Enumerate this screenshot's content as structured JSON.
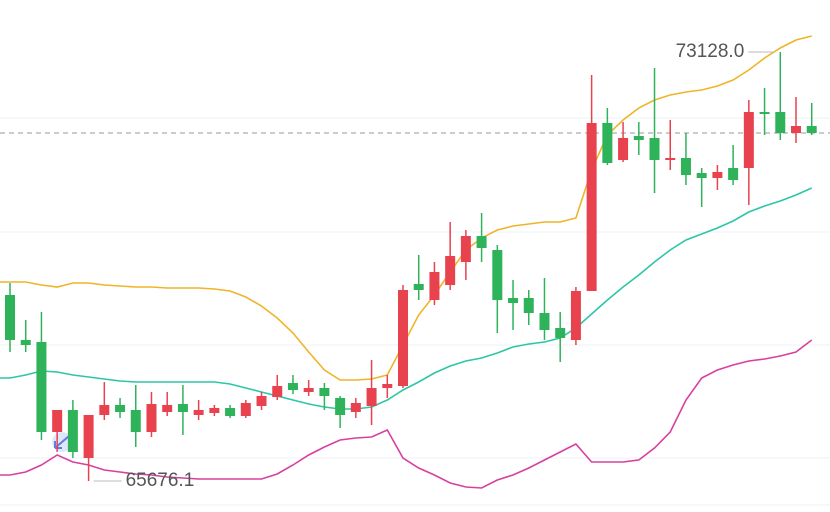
{
  "chart_data": {
    "type": "candlestick",
    "up_color": "#e8424f",
    "down_color": "#2eb35a",
    "open": [
      68907.1,
      68125.4,
      68090.7,
      66527.4,
      66909.5,
      66075.8,
      66822.7,
      66996.4,
      66909.5,
      66527.4,
      66874.8,
      67013.8,
      66822.7,
      66857.4,
      66944.3,
      66805.3,
      66979,
      67135.3,
      67378.5,
      67222.2,
      67291.7,
      67118,
      66874.8,
      66979,
      67291.7,
      67326.4,
      69098.2,
      68820.2,
      69080.8,
      69480.3,
      69931.9,
      69688.7,
      68855,
      68855,
      68594.4,
      68333.9,
      68125.4,
      68976.6,
      71894.7,
      71252,
      71668.9,
      71634.2,
      71252,
      71286.8,
      71026.2,
      70939.4,
      71113.1,
      71113.1,
      72085.8,
      72085.8,
      71721,
      71842.6
    ],
    "high": [
      69115.5,
      68472.8,
      68611.8,
      66909.5,
      67083.2,
      66822.7,
      67395.9,
      67118,
      67343.8,
      67222.2,
      67222.2,
      67343.8,
      67083.2,
      66996.4,
      66996.4,
      67083.2,
      67222.2,
      67517.5,
      67517.5,
      67430.6,
      67378.5,
      67152.7,
      67118,
      67778,
      67517.5,
      69080.8,
      69601.9,
      69480.3,
      70175.1,
      70036.1,
      70331.4,
      69775.6,
      69167.6,
      68993.9,
      69202.4,
      68611.8,
      69046,
      72728.5,
      72155.3,
      71912.1,
      71912.1,
      72850.1,
      71946.8,
      71721,
      71113.1,
      71165.2,
      71512.6,
      72294.2,
      72502.7,
      73128.0,
      72346.3,
      72242.1
    ],
    "low": [
      67917,
      67917,
      66388.4,
      66180,
      66075.8,
      65676.1,
      66735.8,
      66770.6,
      66266.8,
      66440.5,
      66805.3,
      66475.3,
      66735.8,
      66805.3,
      66770.6,
      66770.6,
      66909.5,
      67083.2,
      67187.5,
      67152.7,
      66909.5,
      66596.9,
      66770.6,
      66649,
      67118,
      67291.7,
      68820.2,
      68733.4,
      68993.9,
      69167.6,
      69480.3,
      68247,
      68299.1,
      68386,
      68125.4,
      67743.3,
      68038.6,
      68976.6,
      71165.2,
      71217.3,
      71338.9,
      70678.8,
      71078.3,
      70817.8,
      70435.6,
      70730.9,
      70817.8,
      70470.4,
      71686.3,
      71599.4,
      71547.3,
      71686.3
    ],
    "close": [
      68125.4,
      68038.6,
      66527.4,
      66909.5,
      66180,
      66822.7,
      66996.4,
      66874.8,
      66527.4,
      67013.8,
      66996.4,
      66874.8,
      66909.5,
      66944.3,
      66805.3,
      67031.1,
      67152.7,
      67326.4,
      67256.9,
      67291.7,
      67152.7,
      66822.7,
      67031.1,
      67291.7,
      67361.2,
      68993.9,
      68993.9,
      69306.6,
      69584.5,
      69931.9,
      69723.5,
      68820.2,
      68768.1,
      68594.4,
      68299.1,
      68160.2,
      68976.6,
      71894.7,
      71199.9,
      71634.2,
      71599.4,
      71252,
      71286.8,
      70991.5,
      70939.4,
      71043.6,
      70904.6,
      72085.8,
      72051.1,
      71721,
      71842.6,
      71721
    ],
    "series": [
      {
        "color": "#f0b429",
        "values": [
          69133,
          69133,
          69081,
          69046,
          69116,
          69116,
          69081,
          69063,
          69046,
          69046,
          69029,
          69029,
          69029,
          69011,
          68977,
          68872,
          68716,
          68508,
          68247,
          67917,
          67604,
          67431,
          67431,
          67448,
          67517,
          68039,
          68560,
          68907,
          69307,
          69689,
          69897,
          70036,
          70106,
          70140,
          70175,
          70175,
          70245,
          71078,
          71686,
          71947,
          72155,
          72294,
          72381,
          72433,
          72468,
          72537,
          72642,
          72815,
          73024,
          73197,
          73336,
          73406
        ]
      },
      {
        "color": "#2cc6a6",
        "values": [
          67465,
          67517,
          67587,
          67570,
          67517,
          67483,
          67448,
          67413,
          67396,
          67396,
          67396,
          67396,
          67396,
          67396,
          67361,
          67292,
          67222,
          67153,
          67083,
          67014,
          66962,
          66927,
          66927,
          66962,
          67083,
          67257,
          67396,
          67552,
          67674,
          67761,
          67813,
          67900,
          68004,
          68056,
          68091,
          68160,
          68334,
          68577,
          68820,
          69046,
          69254,
          69480,
          69689,
          69862,
          69967,
          70071,
          70192,
          70349,
          70453,
          70540,
          70644,
          70766
        ]
      },
      {
        "color": "#d6409f",
        "values": [
          65780,
          65833,
          65954,
          66128,
          66006,
          65954,
          65867,
          65833,
          65798,
          65780,
          65746,
          65728,
          65711,
          65711,
          65711,
          65711,
          65711,
          65798,
          65954,
          66128,
          66267,
          66388,
          66423,
          66441,
          66562,
          66076,
          65902,
          65780,
          65642,
          65572,
          65555,
          65694,
          65780,
          65902,
          66041,
          66180,
          66319,
          66006,
          66006,
          66006,
          66041,
          66249,
          66527,
          67083,
          67465,
          67604,
          67691,
          67761,
          67795,
          67848,
          67917,
          68125
        ]
      }
    ],
    "last_price_line": true,
    "annotations": [
      {
        "value": 73128.0,
        "label": "73128.0"
      },
      {
        "value": 65676.1,
        "label": "65676.1"
      }
    ]
  }
}
